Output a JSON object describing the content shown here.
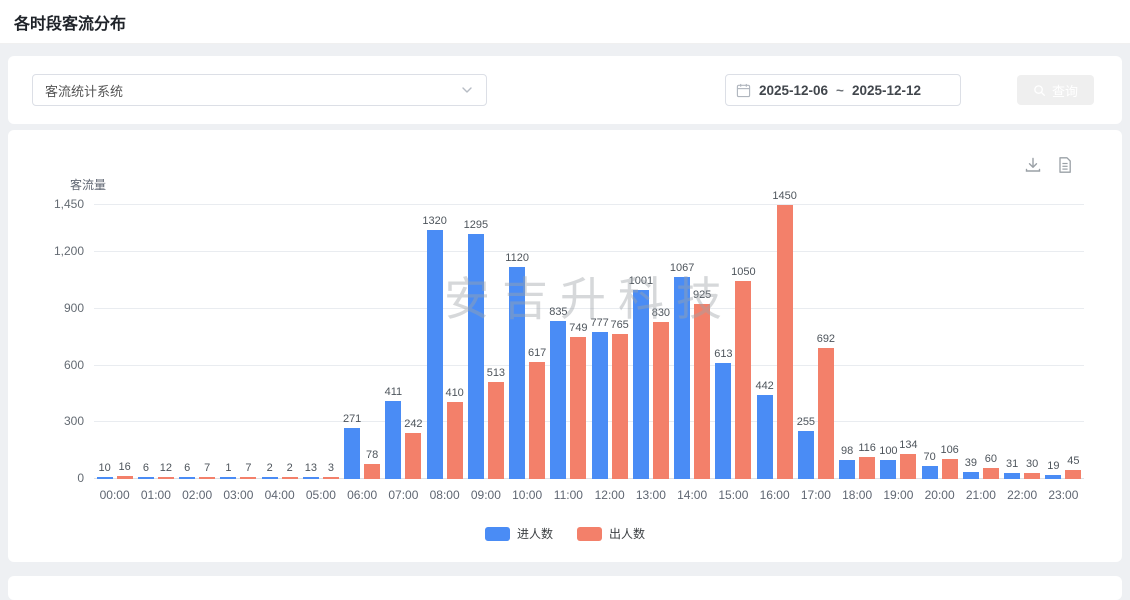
{
  "page": {
    "title": "各时段客流分布"
  },
  "colors": {
    "accent_blue": "#4a8cf5",
    "series_in_blue": "#4a8cf5",
    "series_out_red": "#f3806a",
    "page_background": "#eef0f3",
    "card_background": "#ffffff",
    "watermark_gray": "#9fa4a9"
  },
  "filters": {
    "system_select": {
      "value": "客流统计系统",
      "icon": "chevron-down-icon"
    },
    "date_range": {
      "icon": "calendar-icon",
      "start": "2025-12-06",
      "separator": "~",
      "end": "2025-12-12"
    },
    "query_button": {
      "icon": "search-icon",
      "label": "查询"
    }
  },
  "chart_card": {
    "toolbar_icons": [
      "download-icon",
      "report-icon"
    ],
    "watermark": "安吉升科技"
  },
  "chart_data": {
    "type": "bar",
    "title": "各时段客流分布",
    "xlabel": "",
    "ylabel": "客流量",
    "ylim": [
      0,
      1450
    ],
    "yticks": [
      0,
      300,
      600,
      900,
      1200,
      1450
    ],
    "ytick_labels": [
      "0",
      "300",
      "600",
      "900",
      "1,200",
      "1,450"
    ],
    "grid": true,
    "legend_position": "bottom",
    "bar_value_labels": true,
    "categories": [
      "00:00",
      "01:00",
      "02:00",
      "03:00",
      "04:00",
      "05:00",
      "06:00",
      "07:00",
      "08:00",
      "09:00",
      "10:00",
      "11:00",
      "12:00",
      "13:00",
      "14:00",
      "15:00",
      "16:00",
      "17:00",
      "18:00",
      "19:00",
      "20:00",
      "21:00",
      "22:00",
      "23:00"
    ],
    "series": [
      {
        "name": "进人数",
        "color": "#4a8cf5",
        "values": [
          10,
          6,
          6,
          1,
          2,
          13,
          271,
          411,
          1320,
          1295,
          1120,
          835,
          777,
          1001,
          1067,
          613,
          442,
          255,
          98,
          100,
          70,
          39,
          31,
          19
        ]
      },
      {
        "name": "出人数",
        "color": "#f3806a",
        "values": [
          16,
          12,
          7,
          7,
          2,
          3,
          78,
          242,
          410,
          513,
          617,
          749,
          765,
          830,
          925,
          1050,
          1450,
          692,
          116,
          134,
          106,
          60,
          30,
          45
        ]
      }
    ]
  }
}
